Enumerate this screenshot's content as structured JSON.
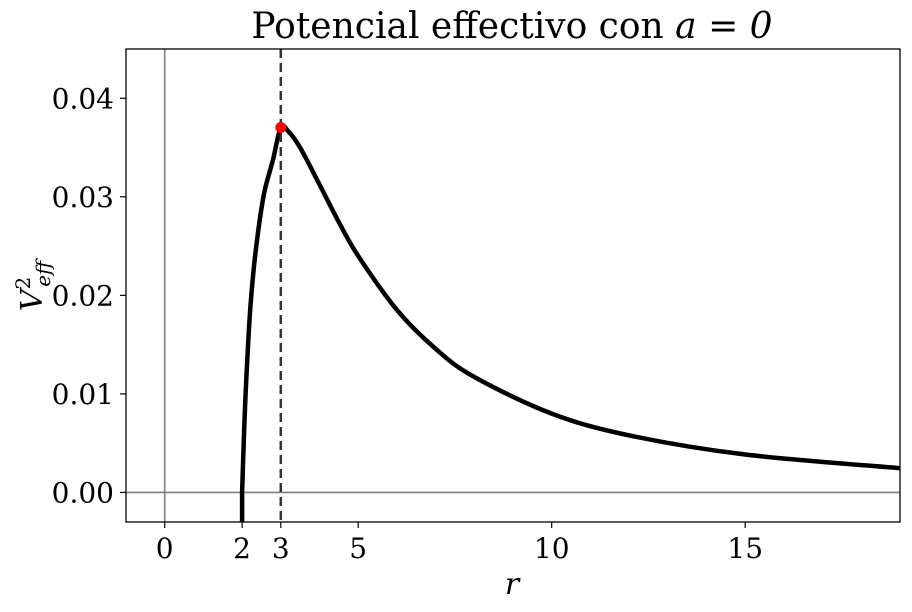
{
  "chart_data": {
    "type": "line",
    "title": "Potencial effectivo con",
    "title_math": "a = 0",
    "xlabel": "r",
    "ylabel_base": "V",
    "ylabel_sup": "2",
    "ylabel_sub": "eff",
    "xlim": [
      -1,
      19
    ],
    "ylim": [
      -0.003,
      0.045
    ],
    "xticks": [
      0,
      2,
      3,
      5,
      10,
      15
    ],
    "yticks": [
      0.0,
      0.01,
      0.02,
      0.03,
      0.04
    ],
    "ytick_labels": [
      "0.00",
      "0.01",
      "0.02",
      "0.03",
      "0.04"
    ],
    "grid": false,
    "reference_lines": {
      "horizontal_y": 0,
      "vertical_x": 0,
      "dashed_vertical_x": 3
    },
    "series": [
      {
        "color": "#000000",
        "x": [
          2.0,
          2.05,
          2.1,
          2.2,
          2.3,
          2.4,
          2.5,
          2.6,
          2.8,
          3.0,
          3.2,
          3.5,
          4.0,
          4.5,
          5.0,
          6.0,
          7.0,
          8.0,
          10.0,
          12.0,
          15.0,
          19.0
        ],
        "y": [
          0.0,
          0.00595,
          0.0108,
          0.01803,
          0.02268,
          0.02604,
          0.0288,
          0.03092,
          0.03379,
          0.03704,
          0.03662,
          0.03499,
          0.03125,
          0.02743,
          0.024,
          0.01852,
          0.01458,
          0.01172,
          0.008,
          0.00579,
          0.00385,
          0.00246
        ]
      }
    ],
    "marker": {
      "x": 3,
      "y": 0.037037,
      "color": "#ff0000"
    },
    "colors": {
      "curve": "#000000",
      "marker": "#ff0000",
      "dashed_line": "#333333",
      "reference_lines": "#808080"
    }
  }
}
